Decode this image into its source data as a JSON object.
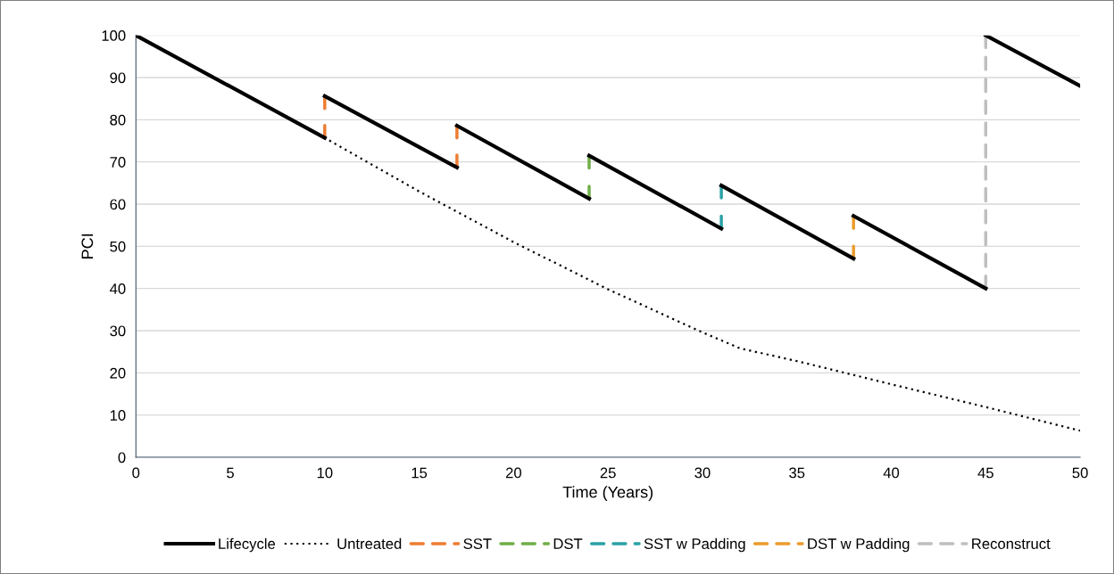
{
  "chart_data": {
    "type": "line",
    "xlabel": "Time (Years)",
    "ylabel": "PCI",
    "xlim": [
      0,
      50
    ],
    "xticks": [
      0,
      5,
      10,
      15,
      20,
      25,
      30,
      35,
      40,
      45,
      50
    ],
    "ylim": [
      0,
      100
    ],
    "yticks": [
      0,
      10,
      20,
      30,
      40,
      50,
      60,
      70,
      80,
      90,
      100
    ],
    "grid": "y",
    "legend": "bottom",
    "marker": "none",
    "series": [
      {
        "name": "Lifecycle",
        "color": "#000000",
        "line_style": "solid",
        "x": [
          0,
          10
        ],
        "values": [
          100,
          75.7
        ]
      },
      {
        "color": "#000000",
        "line_style": "solid",
        "x": [
          10,
          17
        ],
        "values": [
          85.6,
          68.7
        ]
      },
      {
        "color": "#000000",
        "line_style": "solid",
        "x": [
          17,
          24
        ],
        "values": [
          78.6,
          61.3
        ]
      },
      {
        "color": "#000000",
        "line_style": "solid",
        "x": [
          24,
          31
        ],
        "values": [
          71.5,
          54.2
        ]
      },
      {
        "color": "#000000",
        "line_style": "solid",
        "x": [
          31,
          38
        ],
        "values": [
          64.4,
          47.1
        ]
      },
      {
        "color": "#000000",
        "line_style": "solid",
        "x": [
          38,
          45
        ],
        "values": [
          57.2,
          40
        ]
      },
      {
        "color": "#000000",
        "line_style": "solid",
        "x": [
          45,
          50
        ],
        "values": [
          100,
          88
        ]
      },
      {
        "name": "Untreated",
        "color": "#000000",
        "line_style": "dotted",
        "x": [
          0,
          10,
          15,
          20,
          25,
          30,
          32,
          35,
          40,
          45,
          50
        ],
        "values": [
          100,
          75.7,
          63,
          51,
          39.8,
          29.6,
          25.8,
          22.8,
          17.3,
          11.9,
          6.3
        ]
      },
      {
        "name": "SST",
        "color": "#ed7d31",
        "line_style": "dashed",
        "x": [
          10,
          10
        ],
        "values": [
          75.7,
          85.6
        ]
      },
      {
        "color": "#ed7d31",
        "line_style": "dashed",
        "x": [
          17,
          17
        ],
        "values": [
          68.7,
          78.6
        ]
      },
      {
        "name": "DST",
        "color": "#70ad47",
        "line_style": "dashed",
        "x": [
          24,
          24
        ],
        "values": [
          61.3,
          71.5
        ]
      },
      {
        "name": "SST w Padding",
        "color": "#2aa0a6",
        "line_style": "dashed",
        "x": [
          31,
          31
        ],
        "values": [
          54.2,
          64.4
        ]
      },
      {
        "name": "DST w Padding",
        "color": "#ec9b2c",
        "line_style": "dashed",
        "x": [
          38,
          38
        ],
        "values": [
          47.1,
          57.2
        ]
      },
      {
        "name": "Reconstruct",
        "color": "#bfbfbf",
        "line_style": "dashed",
        "x": [
          45,
          45
        ],
        "values": [
          40,
          100
        ]
      }
    ]
  }
}
